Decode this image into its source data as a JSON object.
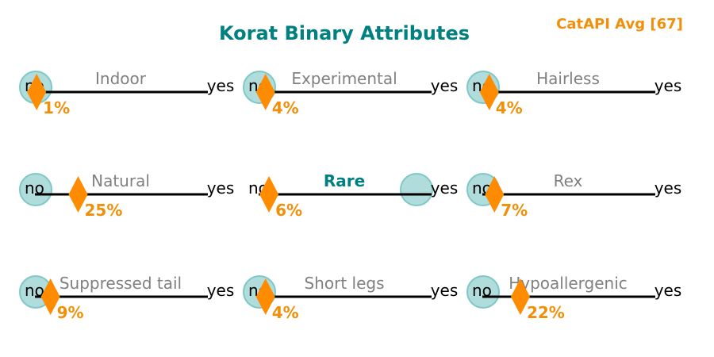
{
  "chart_data": {
    "type": "scatter",
    "title": "Korat Binary Attributes",
    "average_label": "CatAPI Avg [67]",
    "scale": {
      "min": 0,
      "max": 100,
      "left_label": "no",
      "right_label": "yes"
    },
    "attributes": [
      {
        "name": "Indoor",
        "percent": 1,
        "marker_label": "1%",
        "value": "no",
        "highlight": false
      },
      {
        "name": "Experimental",
        "percent": 4,
        "marker_label": "4%",
        "value": "no",
        "highlight": false
      },
      {
        "name": "Hairless",
        "percent": 4,
        "marker_label": "4%",
        "value": "no",
        "highlight": false
      },
      {
        "name": "Natural",
        "percent": 25,
        "marker_label": "25%",
        "value": "no",
        "highlight": false
      },
      {
        "name": "Rare",
        "percent": 6,
        "marker_label": "6%",
        "value": "yes",
        "highlight": true
      },
      {
        "name": "Rex",
        "percent": 7,
        "marker_label": "7%",
        "value": "no",
        "highlight": false
      },
      {
        "name": "Suppressed tail",
        "percent": 9,
        "marker_label": "9%",
        "value": "no",
        "highlight": false
      },
      {
        "name": "Short legs",
        "percent": 4,
        "marker_label": "4%",
        "value": "no",
        "highlight": false
      },
      {
        "name": "Hypoallergenic",
        "percent": 22,
        "marker_label": "22%",
        "value": "no",
        "highlight": false
      }
    ]
  },
  "colors": {
    "title": "#008080",
    "highlight_label": "#008080",
    "normal_label": "#808080",
    "marker": "#ff8c00",
    "percent_text": "#f0900a",
    "average_text": "#f0900a",
    "circle_fill": "#b0dcdc",
    "circle_stroke": "#80c8c8",
    "line": "#000000"
  }
}
